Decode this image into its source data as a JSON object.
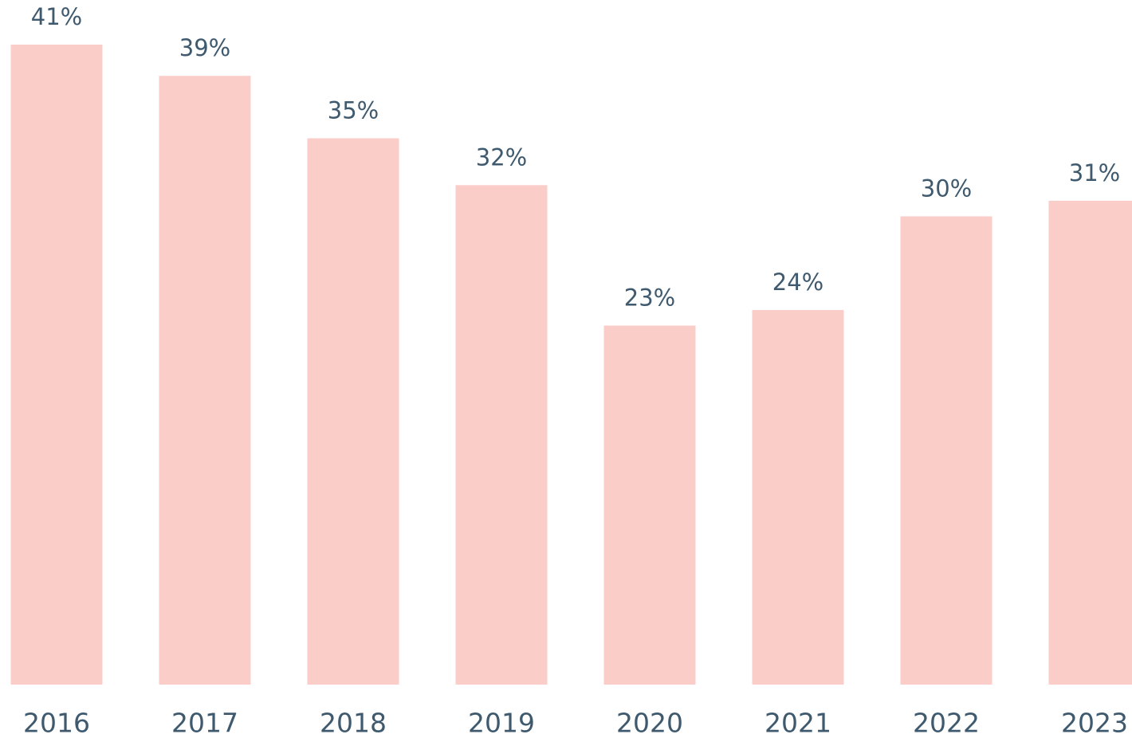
{
  "chart_data": {
    "type": "bar",
    "categories": [
      "2016",
      "2017",
      "2018",
      "2019",
      "2020",
      "2021",
      "2022",
      "2023"
    ],
    "values": [
      41,
      39,
      35,
      32,
      23,
      24,
      30,
      31
    ],
    "value_labels": [
      "41%",
      "39%",
      "35%",
      "32%",
      "23%",
      "24%",
      "30%",
      "31%"
    ],
    "color": "#fbcdc9"
  }
}
